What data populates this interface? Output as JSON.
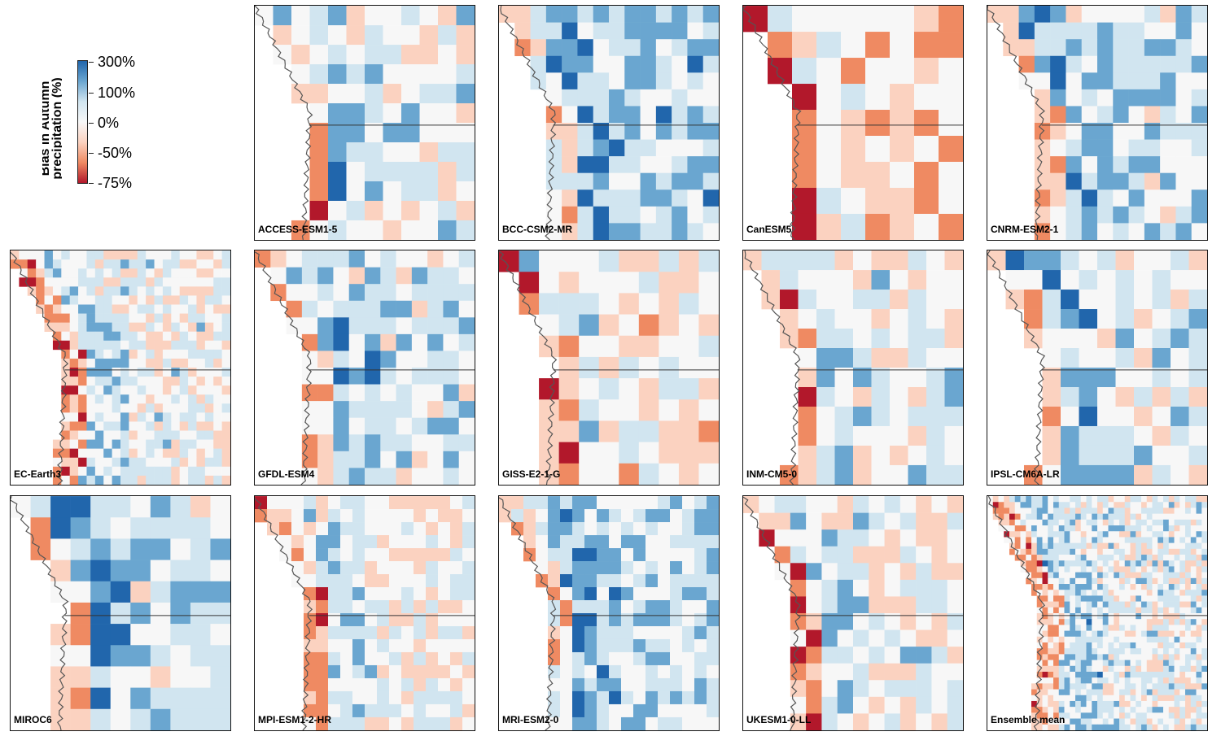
{
  "legend": {
    "title_line1": "Bias in Autumn",
    "title_line2": "precipitation (%)",
    "ticks": [
      "300%",
      "100%",
      "0%",
      "-50%",
      "-75%"
    ],
    "gradient_colors": [
      "#2166ac",
      "#6aa6d0",
      "#d1e5f0",
      "#f7f7f7",
      "#fbd2c0",
      "#ef8a62",
      "#b2182b"
    ]
  },
  "colors": {
    "strong_blue": "#2166ac",
    "mid_blue": "#6aa6d0",
    "light_blue": "#d1e5f0",
    "neutral": "#f7f7f7",
    "light_red": "#fbd2c0",
    "mid_red": "#ef8a62",
    "strong_red": "#b2182b",
    "coastline": "#555555"
  },
  "panels": [
    {
      "label": "ACCESS-ESM1-5"
    },
    {
      "label": "BCC-CSM2-MR"
    },
    {
      "label": "CanESM5"
    },
    {
      "label": "CNRM-ESM2-1"
    },
    {
      "label": "EC-Earth3"
    },
    {
      "label": "GFDL-ESM4"
    },
    {
      "label": "GISS-E2-1-G"
    },
    {
      "label": "INM-CM5-0"
    },
    {
      "label": "IPSL-CM6A-LR"
    },
    {
      "label": "MIROC6"
    },
    {
      "label": "MPI-ESM1-2-HR"
    },
    {
      "label": "MRI-ESM2-0"
    },
    {
      "label": "UKESM1-0-LL"
    },
    {
      "label": "Ensemble mean"
    }
  ]
}
